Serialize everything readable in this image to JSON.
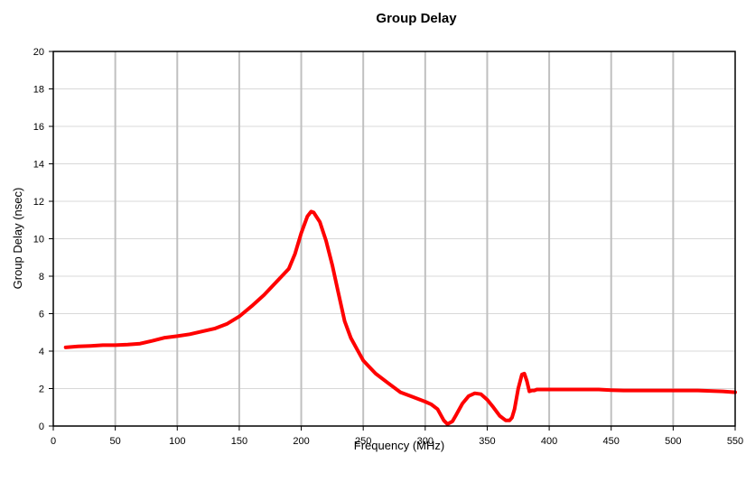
{
  "chart_data": {
    "type": "line",
    "title": "Group Delay",
    "xlabel": "Frequency (MHz)",
    "ylabel": "Group Delay (nsec)",
    "xlim": [
      0,
      550
    ],
    "ylim": [
      0,
      20
    ],
    "x_ticks": [
      "0",
      "50",
      "100",
      "150",
      "200",
      "250",
      "300",
      "350",
      "400",
      "450",
      "500",
      "550"
    ],
    "y_ticks": [
      "0",
      "2",
      "4",
      "6",
      "8",
      "10",
      "12",
      "14",
      "16",
      "18",
      "20"
    ],
    "grid": {
      "vertical": true,
      "horizontal": true
    },
    "colors": {
      "line": "#ff0000",
      "vertical_grid": "#c0c0c0",
      "horizontal_grid": "#d8d8d8",
      "frame": "#000000"
    },
    "series": [
      {
        "x": [
          10,
          20,
          30,
          40,
          50,
          60,
          70,
          80,
          90,
          100,
          110,
          120,
          130,
          140,
          150,
          160,
          170,
          180,
          190,
          195,
          200,
          205,
          208,
          210,
          215,
          220,
          225,
          230,
          235,
          240,
          245,
          250,
          255,
          260,
          270,
          280,
          290,
          300,
          305,
          310,
          315,
          318,
          322,
          325,
          330,
          335,
          340,
          345,
          350,
          355,
          360,
          365,
          368,
          370,
          372,
          375,
          378,
          380,
          382,
          384,
          386,
          388,
          390,
          400,
          420,
          440,
          450,
          460,
          480,
          500,
          520,
          540,
          550
        ],
        "y": [
          4.2,
          4.25,
          4.28,
          4.32,
          4.32,
          4.35,
          4.4,
          4.55,
          4.72,
          4.8,
          4.9,
          5.05,
          5.2,
          5.45,
          5.85,
          6.4,
          7.0,
          7.7,
          8.4,
          9.2,
          10.3,
          11.2,
          11.45,
          11.4,
          10.9,
          9.9,
          8.6,
          7.1,
          5.6,
          4.7,
          4.1,
          3.5,
          3.15,
          2.8,
          2.3,
          1.8,
          1.55,
          1.3,
          1.15,
          0.9,
          0.3,
          0.1,
          0.25,
          0.6,
          1.2,
          1.6,
          1.75,
          1.7,
          1.4,
          1.0,
          0.55,
          0.3,
          0.3,
          0.45,
          0.9,
          2.0,
          2.75,
          2.8,
          2.4,
          1.85,
          1.9,
          1.9,
          1.95,
          1.95,
          1.95,
          1.95,
          1.92,
          1.9,
          1.9,
          1.9,
          1.9,
          1.85,
          1.8
        ]
      }
    ]
  }
}
